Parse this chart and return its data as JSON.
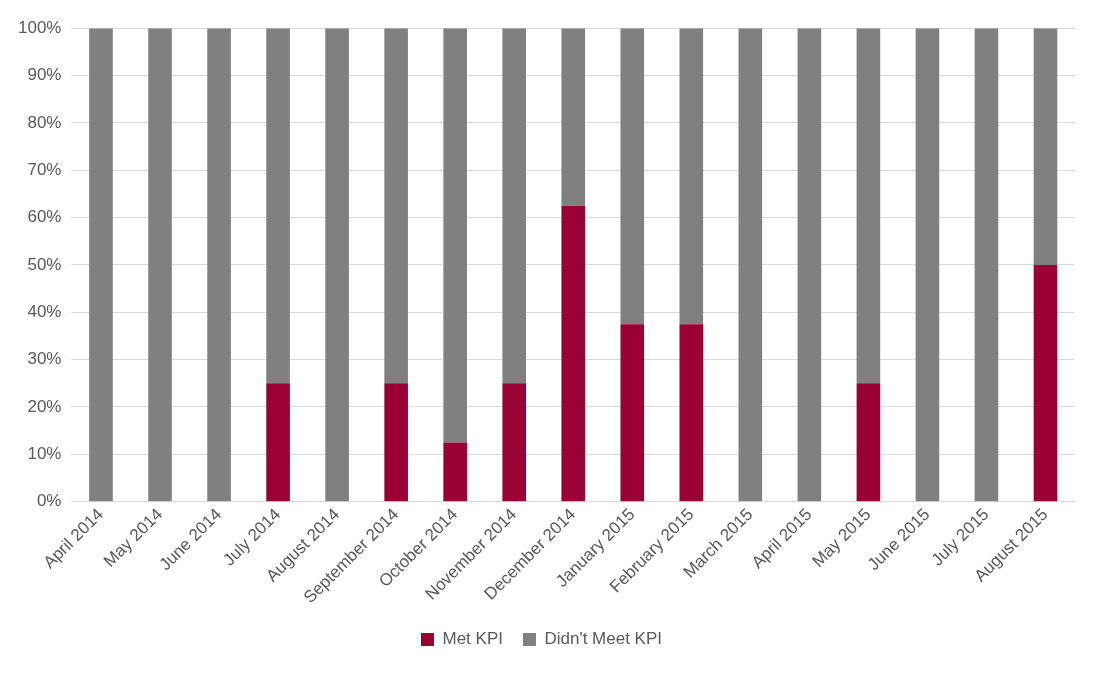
{
  "chart_data": {
    "type": "bar",
    "stacked": true,
    "categories": [
      "April 2014",
      "May 2014",
      "June 2014",
      "July 2014",
      "August 2014",
      "September 2014",
      "October 2014",
      "November 2014",
      "December 2014",
      "January 2015",
      "February 2015",
      "March 2015",
      "April 2015",
      "May 2015",
      "June 2015",
      "July 2015",
      "August 2015"
    ],
    "series": [
      {
        "name": "Met KPI",
        "color": "#990033",
        "values": [
          0,
          0,
          0,
          25,
          0,
          25,
          12.5,
          25,
          62.5,
          37.5,
          37.5,
          0,
          0,
          25,
          0,
          0,
          50
        ]
      },
      {
        "name": "Didn't Meet KPI",
        "color": "#808080",
        "values": [
          100,
          100,
          100,
          75,
          100,
          75,
          87.5,
          75,
          37.5,
          62.5,
          62.5,
          100,
          100,
          75,
          100,
          100,
          50
        ]
      }
    ],
    "ylim": [
      0,
      100
    ],
    "yticks": [
      {
        "value": 0,
        "label": "0%"
      },
      {
        "value": 10,
        "label": "10%"
      },
      {
        "value": 20,
        "label": "20%"
      },
      {
        "value": 30,
        "label": "30%"
      },
      {
        "value": 40,
        "label": "40%"
      },
      {
        "value": 50,
        "label": "50%"
      },
      {
        "value": 60,
        "label": "60%"
      },
      {
        "value": 70,
        "label": "70%"
      },
      {
        "value": 80,
        "label": "80%"
      },
      {
        "value": 90,
        "label": "90%"
      },
      {
        "value": 100,
        "label": "100%"
      }
    ],
    "grid": "y",
    "legend": "bottom"
  }
}
